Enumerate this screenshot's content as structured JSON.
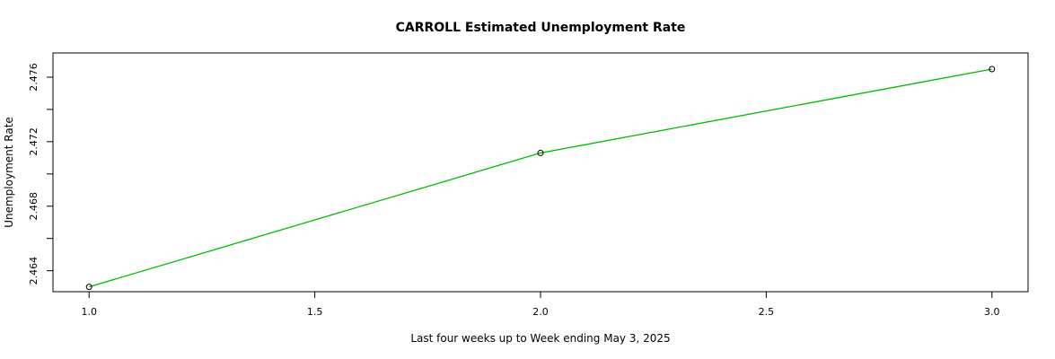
{
  "chart_data": {
    "type": "line",
    "title": "CARROLL Estimated Unemployment Rate",
    "xlabel": "Last four weeks up to Week ending May 3, 2025",
    "ylabel": "Unemployment Rate",
    "x": [
      1,
      2,
      3
    ],
    "series": [
      {
        "values": [
          2.463,
          2.4713,
          2.4765
        ],
        "color": "#00bb00"
      }
    ],
    "xlim": [
      0.92,
      3.08
    ],
    "ylim": [
      2.4627,
      2.4775
    ],
    "x_ticks": [
      1.0,
      1.5,
      2.0,
      2.5,
      3.0
    ],
    "x_tick_labels": [
      "1.0",
      "1.5",
      "2.0",
      "2.5",
      "3.0"
    ],
    "y_ticks": [
      2.464,
      2.468,
      2.472,
      2.476
    ],
    "y_tick_labels": [
      "2.464",
      "2.468",
      "2.472",
      "2.476"
    ],
    "grid": false,
    "markers": "open-circle"
  }
}
